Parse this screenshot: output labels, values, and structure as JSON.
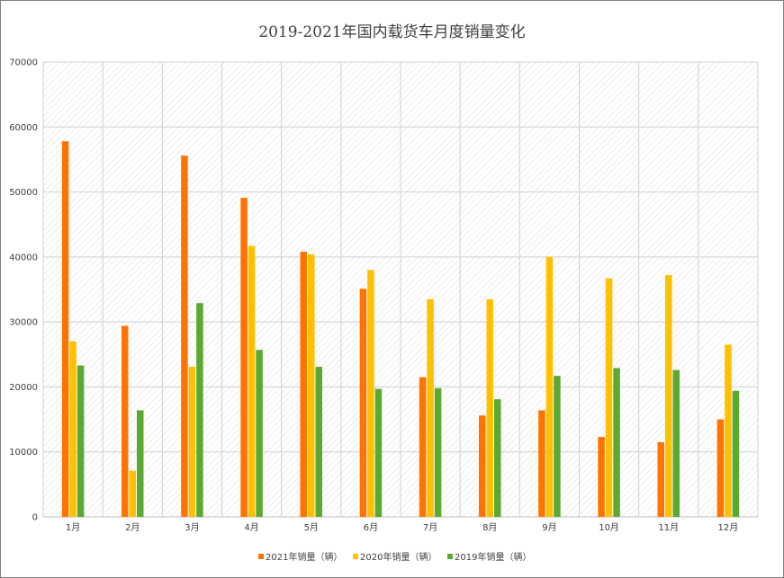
{
  "chart_data": {
    "type": "bar",
    "title": "2019-2021年国内载货车月度销量变化",
    "categories": [
      "1月",
      "2月",
      "3月",
      "4月",
      "5月",
      "6月",
      "7月",
      "8月",
      "9月",
      "10月",
      "11月",
      "12月"
    ],
    "ylim": [
      0,
      70000
    ],
    "yticks": [
      0,
      10000,
      20000,
      30000,
      40000,
      50000,
      60000,
      70000
    ],
    "grid": true,
    "legend_position": "bottom",
    "series": [
      {
        "name": "2021年销量（辆）",
        "color": "#ff7300",
        "values": [
          57800,
          29400,
          55600,
          49100,
          40800,
          35100,
          21500,
          15600,
          16400,
          12300,
          11500,
          15000
        ]
      },
      {
        "name": "2020年销量（辆）",
        "color": "#ffc000",
        "values": [
          27000,
          7100,
          23100,
          41700,
          40400,
          38000,
          33500,
          33500,
          40000,
          36700,
          37200,
          26500
        ]
      },
      {
        "name": "2019年销量（辆）",
        "color": "#5aaa32",
        "values": [
          23300,
          16400,
          32900,
          25700,
          23100,
          19700,
          19800,
          18100,
          21700,
          22900,
          22600,
          19400
        ]
      }
    ]
  }
}
